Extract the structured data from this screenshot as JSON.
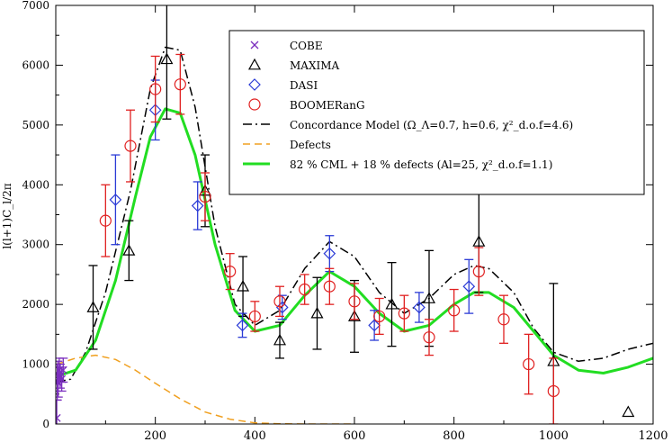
{
  "chart_data": {
    "type": "scatter",
    "ylabel": "l(l+1)C_l/2π",
    "xlim": [
      0,
      1200
    ],
    "ylim": [
      0,
      7000
    ],
    "x_ticks": [
      200,
      400,
      600,
      800,
      1000,
      1200
    ],
    "y_ticks": [
      0,
      1000,
      2000,
      3000,
      4000,
      5000,
      6000,
      7000
    ],
    "legend": {
      "placement": "top-right",
      "entries": [
        {
          "name": "COBE",
          "marker": "x",
          "color": "#7b2fbe"
        },
        {
          "name": "MAXIMA",
          "marker": "triangle",
          "color": "#000000"
        },
        {
          "name": "DASI",
          "marker": "diamond",
          "color": "#2b3bd6"
        },
        {
          "name": "BOOMERanG",
          "marker": "circle",
          "color": "#e02020"
        },
        {
          "name": "Concordance Model (Ω_Λ=0.7, h=0.6, χ²_d.o.f=4.6)",
          "line": "dashdot",
          "color": "#000000"
        },
        {
          "name": "Defects",
          "line": "dashed",
          "color": "#f0a020"
        },
        {
          "name": "82 % CML + 18 % defects (Al=25, χ²_d.o.f=1.1)",
          "line": "solid",
          "color": "#22dd22"
        }
      ]
    },
    "series": [
      {
        "name": "COBE",
        "marker": "x",
        "color": "#7b2fbe",
        "points": [
          {
            "x": 2,
            "y": 100,
            "err": 300
          },
          {
            "x": 3,
            "y": 700,
            "err": 300
          },
          {
            "x": 4,
            "y": 800,
            "err": 250
          },
          {
            "x": 5,
            "y": 700,
            "err": 250
          },
          {
            "x": 7,
            "y": 900,
            "err": 200
          },
          {
            "x": 9,
            "y": 800,
            "err": 200
          },
          {
            "x": 12,
            "y": 750,
            "err": 200
          },
          {
            "x": 15,
            "y": 900,
            "err": 200
          }
        ]
      },
      {
        "name": "MAXIMA",
        "marker": "triangle",
        "color": "#000000",
        "points": [
          {
            "x": 75,
            "y": 1950,
            "err": 700
          },
          {
            "x": 147,
            "y": 2900,
            "err": 500
          },
          {
            "x": 223,
            "y": 6100,
            "err": 1000
          },
          {
            "x": 300,
            "y": 3900,
            "err": 600
          },
          {
            "x": 376,
            "y": 2300,
            "err": 500
          },
          {
            "x": 450,
            "y": 1400,
            "err": 300
          },
          {
            "x": 525,
            "y": 1850,
            "err": 600
          },
          {
            "x": 600,
            "y": 1800,
            "err": 600
          },
          {
            "x": 675,
            "y": 2000,
            "err": 700
          },
          {
            "x": 750,
            "y": 2100,
            "err": 800
          },
          {
            "x": 850,
            "y": 3050,
            "err": 850
          },
          {
            "x": 1000,
            "y": 1050,
            "err": 1300
          },
          {
            "x": 1150,
            "y": 200,
            "err": 0
          }
        ]
      },
      {
        "name": "DASI",
        "marker": "diamond",
        "color": "#2b3bd6",
        "points": [
          {
            "x": 120,
            "y": 3750,
            "err": 750
          },
          {
            "x": 200,
            "y": 5250,
            "err": 500
          },
          {
            "x": 285,
            "y": 3650,
            "err": 400
          },
          {
            "x": 375,
            "y": 1650,
            "err": 200
          },
          {
            "x": 455,
            "y": 1950,
            "err": 200
          },
          {
            "x": 550,
            "y": 2850,
            "err": 300
          },
          {
            "x": 640,
            "y": 1650,
            "err": 250
          },
          {
            "x": 730,
            "y": 1950,
            "err": 250
          },
          {
            "x": 830,
            "y": 2300,
            "err": 450
          }
        ]
      },
      {
        "name": "BOOMERanG",
        "marker": "circle",
        "color": "#e02020",
        "points": [
          {
            "x": 100,
            "y": 3400,
            "err": 600
          },
          {
            "x": 150,
            "y": 4650,
            "err": 600
          },
          {
            "x": 200,
            "y": 5600,
            "err": 550
          },
          {
            "x": 250,
            "y": 5680,
            "err": 500
          },
          {
            "x": 300,
            "y": 3800,
            "err": 400
          },
          {
            "x": 350,
            "y": 2550,
            "err": 300
          },
          {
            "x": 400,
            "y": 1800,
            "err": 250
          },
          {
            "x": 450,
            "y": 2050,
            "err": 250
          },
          {
            "x": 500,
            "y": 2250,
            "err": 250
          },
          {
            "x": 550,
            "y": 2300,
            "err": 300
          },
          {
            "x": 600,
            "y": 2050,
            "err": 300
          },
          {
            "x": 650,
            "y": 1800,
            "err": 300
          },
          {
            "x": 700,
            "y": 1850,
            "err": 300
          },
          {
            "x": 750,
            "y": 1450,
            "err": 300
          },
          {
            "x": 800,
            "y": 1900,
            "err": 350
          },
          {
            "x": 850,
            "y": 2550,
            "err": 400
          },
          {
            "x": 900,
            "y": 1750,
            "err": 400
          },
          {
            "x": 950,
            "y": 1000,
            "err": 500
          },
          {
            "x": 1000,
            "y": 550,
            "err": 550
          }
        ]
      }
    ],
    "lines": [
      {
        "name": "Concordance Model (Ω_Λ=0.7, h=0.6, χ²_d.o.f=4.6)",
        "style": "dashdot",
        "color": "#000000",
        "points": [
          [
            2,
            700
          ],
          [
            30,
            750
          ],
          [
            60,
            1200
          ],
          [
            100,
            2200
          ],
          [
            150,
            3900
          ],
          [
            190,
            5600
          ],
          [
            220,
            6300
          ],
          [
            250,
            6250
          ],
          [
            280,
            5300
          ],
          [
            320,
            3300
          ],
          [
            360,
            2000
          ],
          [
            400,
            1650
          ],
          [
            450,
            1900
          ],
          [
            500,
            2600
          ],
          [
            550,
            3050
          ],
          [
            600,
            2800
          ],
          [
            650,
            2200
          ],
          [
            700,
            1850
          ],
          [
            750,
            2100
          ],
          [
            800,
            2500
          ],
          [
            840,
            2650
          ],
          [
            870,
            2600
          ],
          [
            920,
            2200
          ],
          [
            960,
            1600
          ],
          [
            1000,
            1200
          ],
          [
            1050,
            1050
          ],
          [
            1100,
            1100
          ],
          [
            1150,
            1250
          ],
          [
            1200,
            1350
          ]
        ]
      },
      {
        "name": "Defects",
        "style": "dashed",
        "color": "#f0a020",
        "points": [
          [
            2,
            1000
          ],
          [
            40,
            1100
          ],
          [
            80,
            1150
          ],
          [
            120,
            1080
          ],
          [
            160,
            900
          ],
          [
            200,
            680
          ],
          [
            250,
            420
          ],
          [
            300,
            200
          ],
          [
            350,
            80
          ],
          [
            400,
            20
          ],
          [
            450,
            5
          ],
          [
            500,
            0
          ],
          [
            600,
            0
          ]
        ]
      },
      {
        "name": "82 % CML + 18 % defects (Al=25, χ²_d.o.f=1.1)",
        "style": "solid",
        "color": "#22dd22",
        "points": [
          [
            2,
            800
          ],
          [
            40,
            900
          ],
          [
            80,
            1400
          ],
          [
            120,
            2400
          ],
          [
            160,
            3800
          ],
          [
            190,
            4800
          ],
          [
            220,
            5270
          ],
          [
            250,
            5200
          ],
          [
            280,
            4500
          ],
          [
            320,
            3000
          ],
          [
            360,
            1900
          ],
          [
            400,
            1550
          ],
          [
            450,
            1650
          ],
          [
            500,
            2150
          ],
          [
            550,
            2550
          ],
          [
            600,
            2300
          ],
          [
            650,
            1850
          ],
          [
            700,
            1550
          ],
          [
            750,
            1650
          ],
          [
            800,
            2000
          ],
          [
            840,
            2200
          ],
          [
            870,
            2200
          ],
          [
            920,
            1950
          ],
          [
            960,
            1550
          ],
          [
            1000,
            1150
          ],
          [
            1050,
            900
          ],
          [
            1100,
            850
          ],
          [
            1150,
            950
          ],
          [
            1200,
            1100
          ]
        ]
      }
    ]
  }
}
